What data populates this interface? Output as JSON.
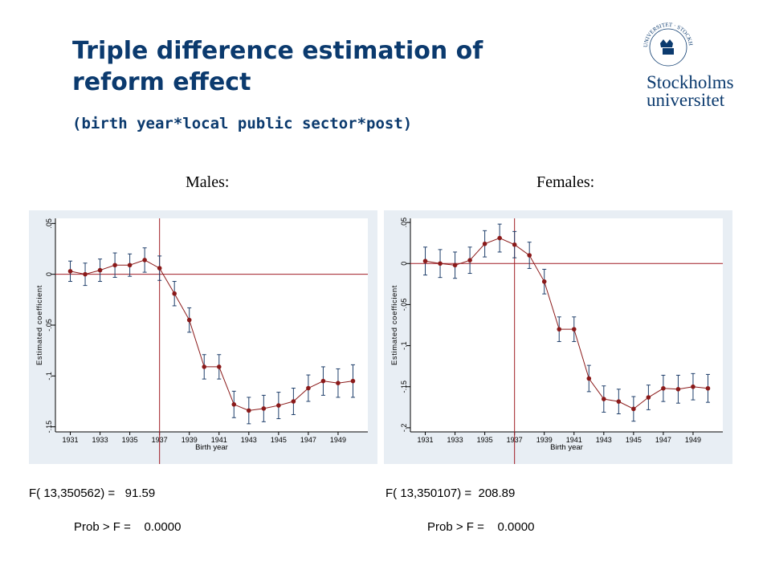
{
  "slide": {
    "title_line1": "Triple difference estimation of",
    "title_line2": "reform effect",
    "subtitle": "(birth year*local public sector*post)"
  },
  "logo": {
    "line1": "Stockholms",
    "line2": "universitet",
    "seal_text": "UNIVERSITET · STOCKHOLMS"
  },
  "colors": {
    "title": "#0b3a6e",
    "plot_bg": "#e8eef4",
    "series": "#8b1a1a",
    "error_bars": "#1f3f6b",
    "ref_lines": "#a01c24"
  },
  "stats": {
    "males_f": "F( 13,350562) =   91.59",
    "males_p": "Prob > F =    0.0000",
    "females_f": "F( 13,350107) =  208.89",
    "females_p": "Prob > F =    0.0000"
  },
  "chart_data": [
    {
      "type": "line",
      "title": "Males:",
      "xlabel": "Birth year",
      "ylabel": "Estimated coefficient",
      "x": [
        1931,
        1932,
        1933,
        1934,
        1935,
        1936,
        1937,
        1938,
        1939,
        1940,
        1941,
        1942,
        1943,
        1944,
        1945,
        1946,
        1947,
        1948,
        1949,
        1950
      ],
      "values": [
        0.003,
        0.0,
        0.004,
        0.009,
        0.009,
        0.014,
        0.006,
        -0.019,
        -0.045,
        -0.091,
        -0.091,
        -0.128,
        -0.134,
        -0.132,
        -0.129,
        -0.125,
        -0.112,
        -0.105,
        -0.107,
        -0.105
      ],
      "ci_half": [
        0.01,
        0.011,
        0.011,
        0.012,
        0.011,
        0.012,
        0.012,
        0.012,
        0.012,
        0.012,
        0.012,
        0.013,
        0.013,
        0.013,
        0.013,
        0.013,
        0.013,
        0.014,
        0.014,
        0.016
      ],
      "xticks": [
        "1931",
        "1933",
        "1935",
        "1937",
        "1939",
        "1941",
        "1943",
        "1945",
        "1947",
        "1949"
      ],
      "yticks": [
        0.05,
        0,
        -0.05,
        -0.1,
        -0.15
      ],
      "ytick_labels": [
        ".05",
        "0",
        "-.05",
        "-.1",
        "-.15"
      ],
      "ylim": [
        -0.155,
        0.055
      ],
      "xlim": [
        1930,
        1951
      ],
      "vline_x": 1937,
      "hline_y": 0
    },
    {
      "type": "line",
      "title": "Females:",
      "xlabel": "Birth year",
      "ylabel": "Estimated coefficient",
      "x": [
        1931,
        1932,
        1933,
        1934,
        1935,
        1936,
        1937,
        1938,
        1939,
        1940,
        1941,
        1942,
        1943,
        1944,
        1945,
        1946,
        1947,
        1948,
        1949,
        1950
      ],
      "values": [
        0.003,
        0.0,
        -0.002,
        0.004,
        0.024,
        0.031,
        0.023,
        0.01,
        -0.022,
        -0.08,
        -0.08,
        -0.14,
        -0.165,
        -0.168,
        -0.177,
        -0.163,
        -0.152,
        -0.153,
        -0.15,
        -0.152
      ],
      "ci_half": [
        0.017,
        0.017,
        0.016,
        0.016,
        0.016,
        0.017,
        0.016,
        0.016,
        0.015,
        0.015,
        0.015,
        0.016,
        0.016,
        0.015,
        0.015,
        0.015,
        0.016,
        0.017,
        0.016,
        0.017
      ],
      "xticks": [
        "1931",
        "1933",
        "1935",
        "1937",
        "1939",
        "1941",
        "1943",
        "1945",
        "1947",
        "1949"
      ],
      "yticks": [
        0.05,
        0,
        -0.05,
        -0.1,
        -0.15,
        -0.2
      ],
      "ytick_labels": [
        ".05",
        "0",
        "-.05",
        "-.1",
        "-.15",
        "-.2"
      ],
      "ylim": [
        -0.205,
        0.055
      ],
      "xlim": [
        1930,
        1951
      ],
      "vline_x": 1937,
      "hline_y": 0
    }
  ]
}
